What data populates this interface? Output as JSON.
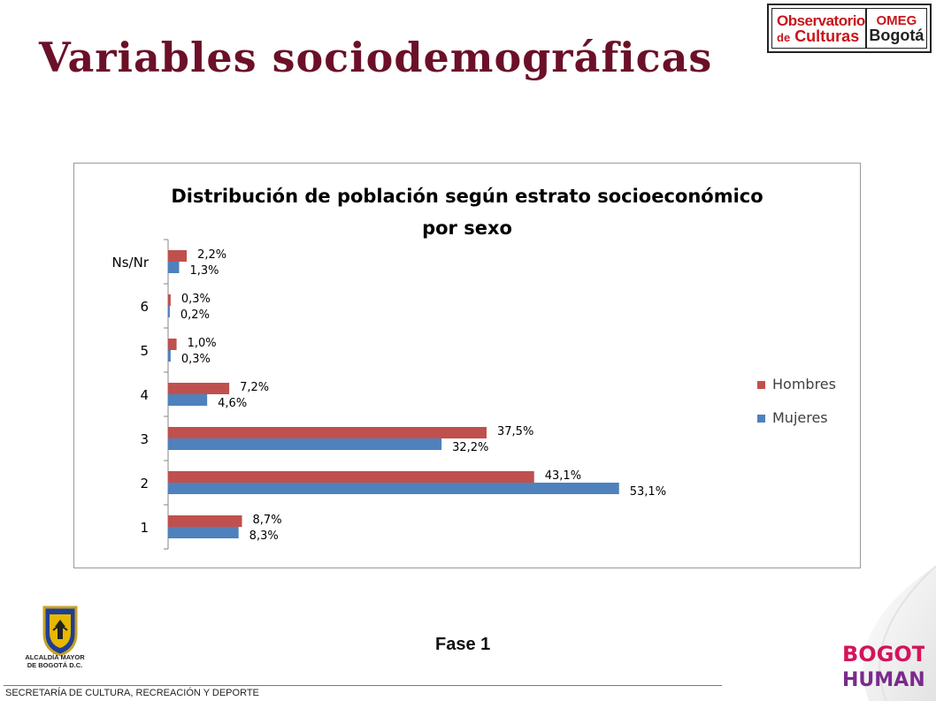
{
  "page_title": "Variables sociodemográficas",
  "logo": {
    "line1": "Observatorio",
    "line2_small": "de",
    "line2": "Culturas",
    "right1": "OMEG",
    "right2": "Bogotá"
  },
  "caption": "Fase 1",
  "crest_text": [
    "ALCALDÍA MAYOR",
    "DE BOGOTÁ D.C."
  ],
  "footer": "SECRETARÍA DE CULTURA, RECREACIÓN Y DEPORTE",
  "brand": {
    "line1": "BOGOTÁ",
    "line2": "HUMANA"
  },
  "colors": {
    "hombres": "#c0504d",
    "mujeres": "#4f81bd",
    "title": "#6b1028"
  },
  "chart_data": {
    "type": "bar",
    "orientation": "horizontal",
    "title": "Distribución de población según estrato socioeconómico por sexo",
    "title_lines": [
      "Distribución de población según estrato socioeconómico",
      "por sexo"
    ],
    "categories": [
      "Ns/Nr",
      "6",
      "5",
      "4",
      "3",
      "2",
      "1"
    ],
    "series": [
      {
        "name": "Hombres",
        "values": [
          2.2,
          0.3,
          1.0,
          7.2,
          37.5,
          43.1,
          8.7
        ],
        "labels": [
          "2,2%",
          "0,3%",
          "1,0%",
          "7,2%",
          "37,5%",
          "43,1%",
          "8,7%"
        ]
      },
      {
        "name": "Mujeres",
        "values": [
          1.3,
          0.2,
          0.3,
          4.6,
          32.2,
          53.1,
          8.3
        ],
        "labels": [
          "1,3%",
          "0,2%",
          "0,3%",
          "4,6%",
          "32,2%",
          "53,1%",
          "8,3%"
        ]
      }
    ],
    "xlim": [
      0,
      60
    ],
    "grid": false,
    "legend": "right"
  }
}
